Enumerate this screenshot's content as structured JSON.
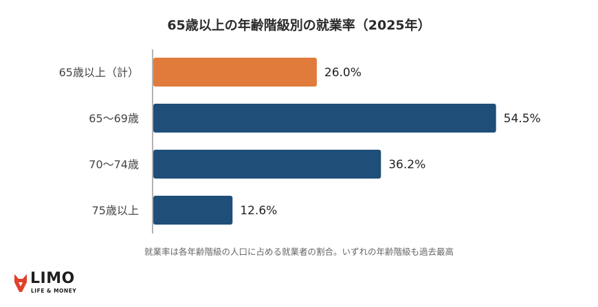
{
  "chart_data": {
    "type": "bar",
    "orientation": "horizontal",
    "title": "65歳以上の年齢階級別の就業率（2025年）",
    "categories": [
      "65歳以上（計）",
      "65〜69歳",
      "70〜74歳",
      "75歳以上"
    ],
    "values": [
      26.0,
      54.5,
      36.2,
      12.6
    ],
    "value_labels": [
      "26.0%",
      "54.5%",
      "36.2%",
      "12.6%"
    ],
    "bar_colors": [
      "#e07b3c",
      "#1f4e79",
      "#1f4e79",
      "#1f4e79"
    ],
    "xlim": [
      0,
      60
    ],
    "grid": false,
    "legend": "none"
  },
  "note": "就業率は各年齢階級の人口に占める就業者の割合。いずれの年齢階級も過去最高",
  "logo": {
    "name": "LIMO",
    "tagline": "LIFE & MONEY",
    "icon": "fox-icon"
  }
}
